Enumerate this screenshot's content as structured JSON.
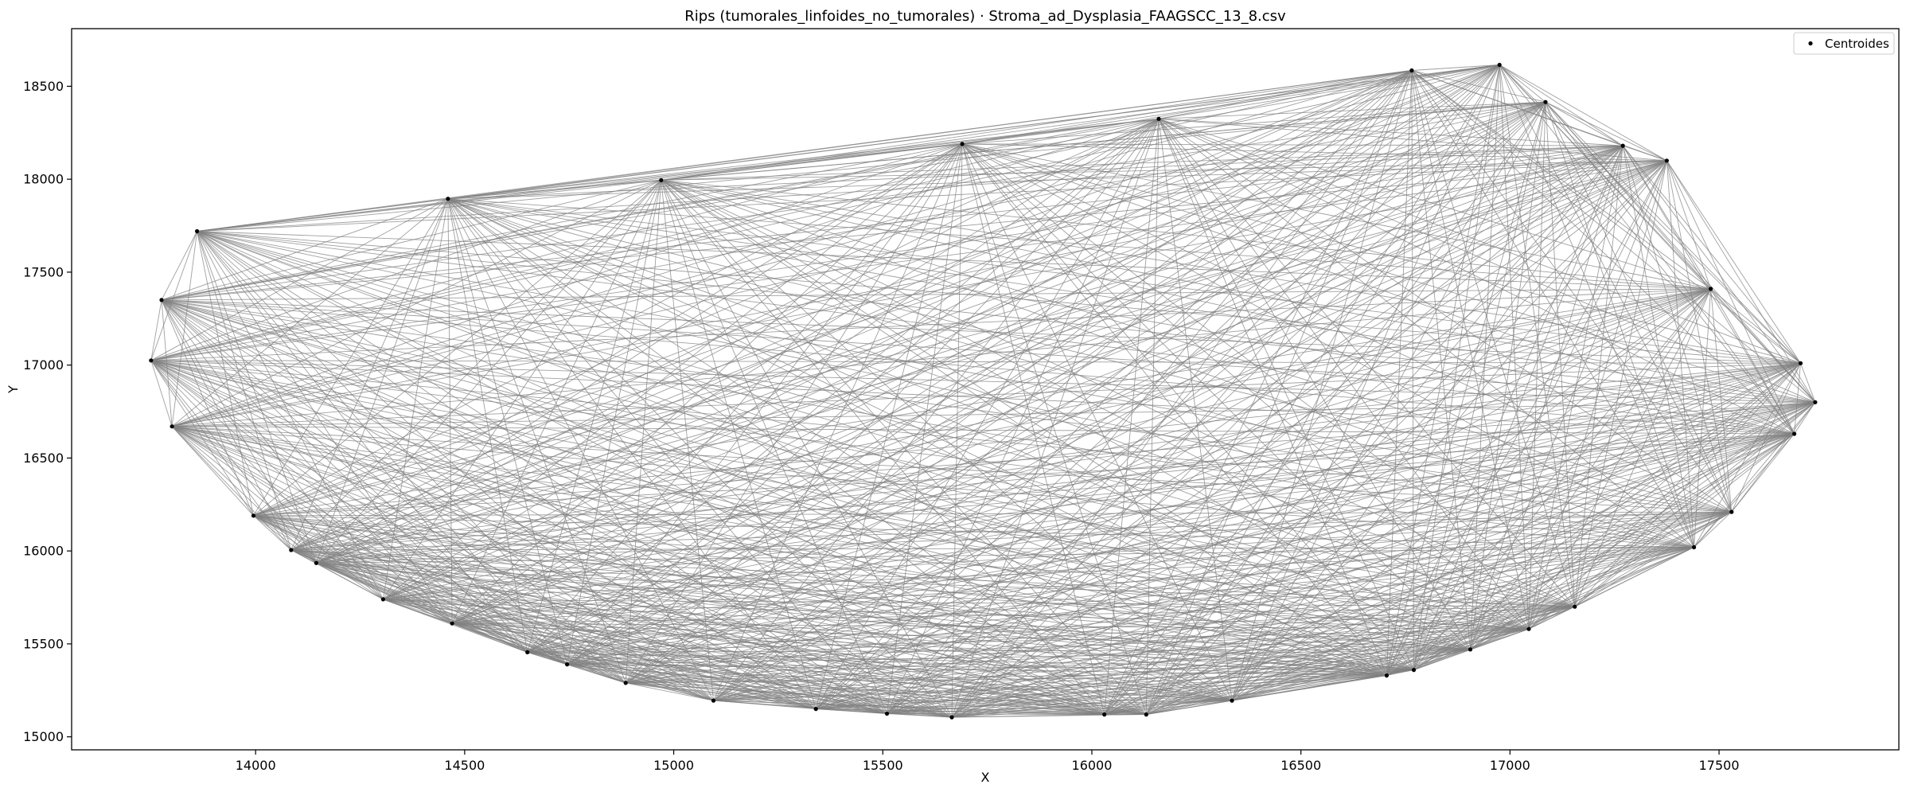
{
  "chart_data": {
    "type": "scatter",
    "title": "Rips (tumorales_linfoides_no_tumorales) · Stroma_ad_Dysplasia_FAAGSCC_13_8.csv",
    "xlabel": "X",
    "ylabel": "Y",
    "xlim": [
      13560,
      17930
    ],
    "ylim": [
      14930,
      18810
    ],
    "xticks": [
      14000,
      14500,
      15000,
      15500,
      16000,
      16500,
      17000,
      17500
    ],
    "yticks": [
      15000,
      15500,
      16000,
      16500,
      17000,
      17500,
      18000,
      18500
    ],
    "grid": false,
    "legend": {
      "placement": "top-right",
      "entries": [
        "Centroides"
      ]
    },
    "colors": {
      "edges": "#808080",
      "points": "#000000"
    },
    "series": [
      {
        "name": "Centroides",
        "mark": "point",
        "points": [
          [
            13750,
            17025
          ],
          [
            13775,
            17350
          ],
          [
            13800,
            16670
          ],
          [
            13860,
            17720
          ],
          [
            13995,
            16190
          ],
          [
            14085,
            16005
          ],
          [
            14145,
            15935
          ],
          [
            14305,
            15740
          ],
          [
            14460,
            17895
          ],
          [
            14470,
            15610
          ],
          [
            14650,
            15455
          ],
          [
            14745,
            15390
          ],
          [
            14885,
            15290
          ],
          [
            14970,
            17995
          ],
          [
            15095,
            15195
          ],
          [
            15340,
            15150
          ],
          [
            15510,
            15125
          ],
          [
            15665,
            15105
          ],
          [
            15690,
            18190
          ],
          [
            16030,
            15120
          ],
          [
            16130,
            15120
          ],
          [
            16160,
            18325
          ],
          [
            16335,
            15195
          ],
          [
            16705,
            15330
          ],
          [
            16770,
            15360
          ],
          [
            16765,
            18585
          ],
          [
            16905,
            15470
          ],
          [
            16975,
            18615
          ],
          [
            17045,
            15580
          ],
          [
            17085,
            18415
          ],
          [
            17155,
            15700
          ],
          [
            17270,
            18180
          ],
          [
            17375,
            18100
          ],
          [
            17440,
            16020
          ],
          [
            17480,
            17410
          ],
          [
            17530,
            16210
          ],
          [
            17680,
            16630
          ],
          [
            17695,
            17010
          ],
          [
            17730,
            16800
          ]
        ]
      }
    ],
    "edges_description_count": "complete"
  }
}
